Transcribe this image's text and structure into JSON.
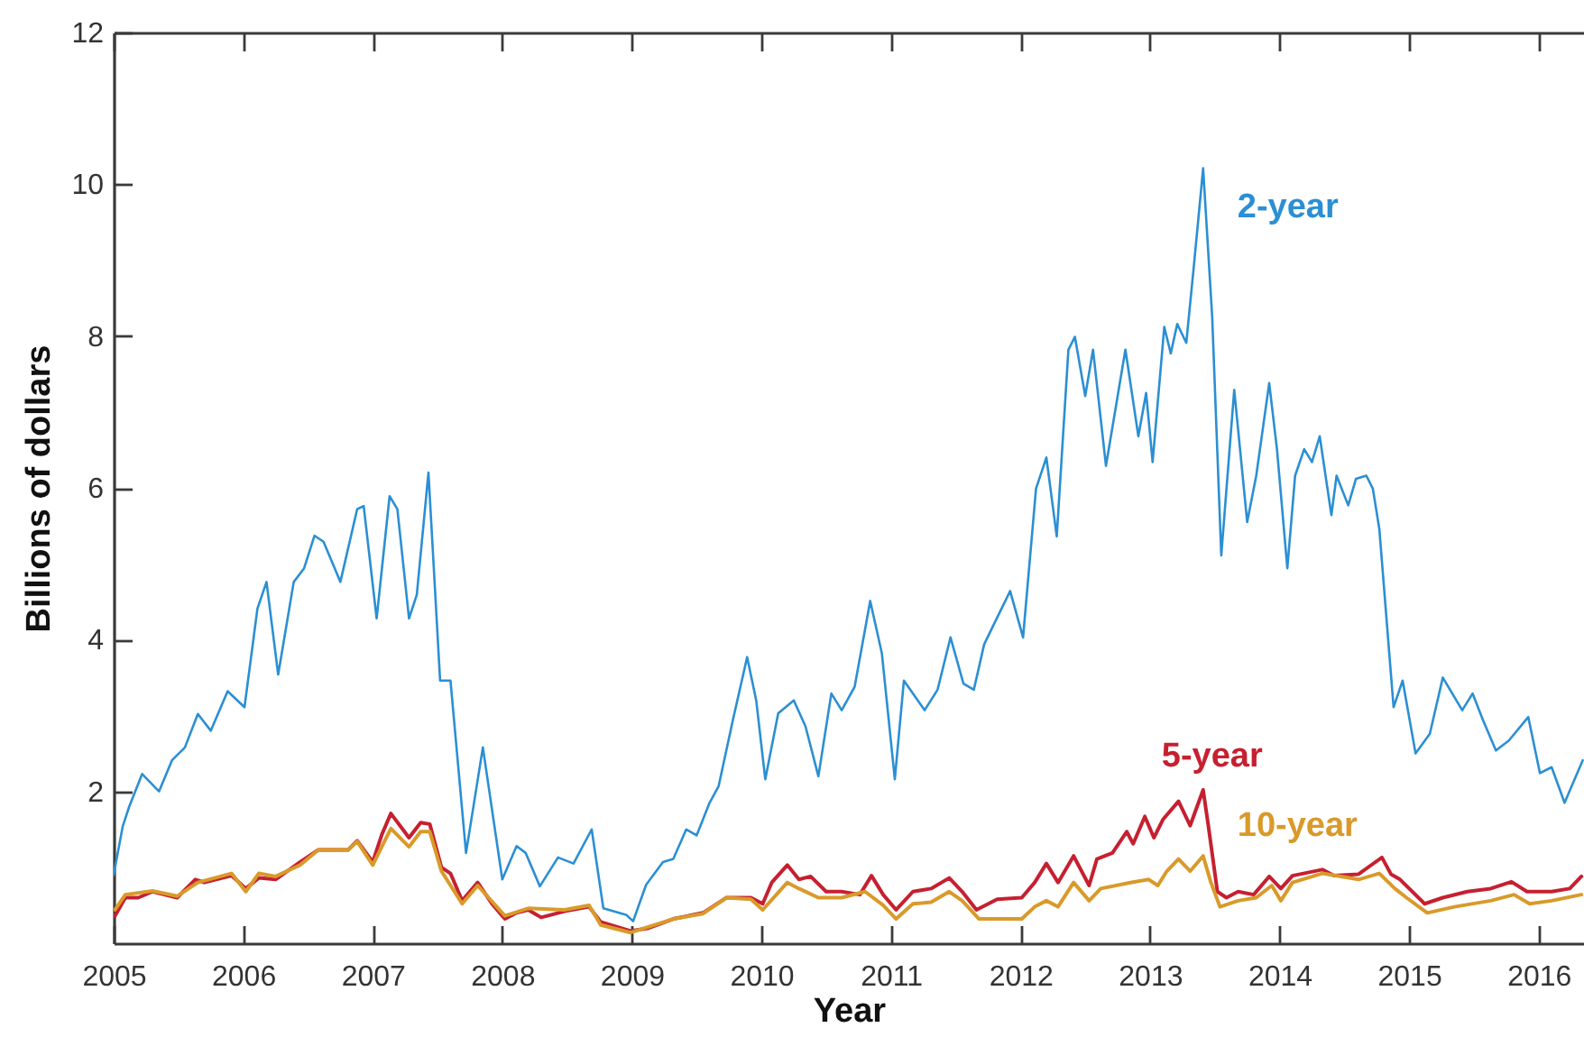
{
  "chart_data": {
    "type": "line",
    "xlabel": "Year",
    "ylabel": "Billions of dollars",
    "xlim": [
      2005,
      2016.35
    ],
    "xticks": [
      2005,
      2006,
      2007,
      2008,
      2009,
      2010,
      2011,
      2012,
      2013,
      2014,
      2015,
      2016
    ],
    "ylim": [
      0,
      12
    ],
    "yticks": [
      2,
      4,
      6,
      8,
      10,
      12
    ],
    "grid": false,
    "series": [
      {
        "name": "2-year",
        "color": "#2b8fd3",
        "x": [
          2005.0,
          2005.07,
          2005.12,
          2005.22,
          2005.35,
          2005.45,
          2005.55,
          2005.65,
          2005.75,
          2005.88,
          2006.01,
          2006.11,
          2006.18,
          2006.27,
          2006.39,
          2006.47,
          2006.55,
          2006.62,
          2006.75,
          2006.88,
          2006.93,
          2007.03,
          2007.13,
          2007.19,
          2007.28,
          2007.34,
          2007.43,
          2007.52,
          2007.6,
          2007.72,
          2007.85,
          2008.0,
          2008.11,
          2008.18,
          2008.29,
          2008.43,
          2008.55,
          2008.69,
          2008.78,
          2008.96,
          2009.01,
          2009.11,
          2009.24,
          2009.32,
          2009.42,
          2009.5,
          2009.6,
          2009.67,
          2009.78,
          2009.89,
          2009.96,
          2010.03,
          2010.13,
          2010.25,
          2010.34,
          2010.44,
          2010.54,
          2010.62,
          2010.72,
          2010.84,
          2010.93,
          2011.03,
          2011.1,
          2011.26,
          2011.36,
          2011.46,
          2011.56,
          2011.64,
          2011.72,
          2011.82,
          2011.92,
          2012.02,
          2012.12,
          2012.2,
          2012.28,
          2012.37,
          2012.42,
          2012.5,
          2012.56,
          2012.66,
          2012.81,
          2012.91,
          2012.97,
          2013.02,
          2013.11,
          2013.16,
          2013.21,
          2013.28,
          2013.34,
          2013.41,
          2013.48,
          2013.55,
          2013.65,
          2013.75,
          2013.82,
          2013.92,
          2013.98,
          2014.06,
          2014.12,
          2014.19,
          2014.25,
          2014.31,
          2014.4,
          2014.44,
          2014.53,
          2014.59,
          2014.67,
          2014.72,
          2014.77,
          2014.88,
          2014.95,
          2015.05,
          2015.16,
          2015.26,
          2015.41,
          2015.49,
          2015.57,
          2015.67,
          2015.77,
          2015.92,
          2016.01,
          2016.1,
          2016.2,
          2016.34
        ],
        "values": [
          0.9,
          1.54,
          1.8,
          2.23,
          2.0,
          2.41,
          2.58,
          3.02,
          2.8,
          3.32,
          3.11,
          4.41,
          4.76,
          3.54,
          4.76,
          4.94,
          5.37,
          5.29,
          4.76,
          5.72,
          5.76,
          4.28,
          5.89,
          5.72,
          4.28,
          4.59,
          6.2,
          3.46,
          3.46,
          1.19,
          2.58,
          0.84,
          1.28,
          1.19,
          0.75,
          1.13,
          1.05,
          1.5,
          0.46,
          0.37,
          0.29,
          0.77,
          1.07,
          1.11,
          1.5,
          1.42,
          1.85,
          2.07,
          2.94,
          3.77,
          3.2,
          2.16,
          3.03,
          3.2,
          2.86,
          2.2,
          3.29,
          3.07,
          3.38,
          4.51,
          3.82,
          2.16,
          3.46,
          3.07,
          3.34,
          4.03,
          3.42,
          3.34,
          3.94,
          4.29,
          4.64,
          4.03,
          5.99,
          6.4,
          5.36,
          7.82,
          7.99,
          7.21,
          7.82,
          6.29,
          7.82,
          6.68,
          7.25,
          6.34,
          8.12,
          7.77,
          8.16,
          7.91,
          8.95,
          10.21,
          8.25,
          5.11,
          7.29,
          5.55,
          6.16,
          7.38,
          6.51,
          4.94,
          6.16,
          6.51,
          6.34,
          6.68,
          5.64,
          6.16,
          5.77,
          6.12,
          6.16,
          5.99,
          5.46,
          3.11,
          3.46,
          2.5,
          2.76,
          3.5,
          3.07,
          3.29,
          2.94,
          2.54,
          2.67,
          2.98,
          2.24,
          2.32,
          1.85,
          2.41
        ]
      },
      {
        "name": "5-year",
        "color": "#c62030",
        "x": [
          2005.01,
          2005.09,
          2005.19,
          2005.3,
          2005.49,
          2005.63,
          2005.7,
          2005.91,
          2006.02,
          2006.12,
          2006.25,
          2006.44,
          2006.58,
          2006.81,
          2006.88,
          2007.0,
          2007.07,
          2007.14,
          2007.28,
          2007.37,
          2007.44,
          2007.53,
          2007.6,
          2007.69,
          2007.81,
          2007.92,
          2008.02,
          2008.11,
          2008.2,
          2008.3,
          2008.48,
          2008.67,
          2008.76,
          2008.99,
          2009.13,
          2009.32,
          2009.55,
          2009.73,
          2009.92,
          2010.01,
          2010.08,
          2010.2,
          2010.29,
          2010.38,
          2010.5,
          2010.62,
          2010.76,
          2010.85,
          2010.94,
          2011.04,
          2011.17,
          2011.31,
          2011.45,
          2011.55,
          2011.66,
          2011.82,
          2012.01,
          2012.11,
          2012.2,
          2012.29,
          2012.41,
          2012.53,
          2012.59,
          2012.71,
          2012.82,
          2012.87,
          2012.96,
          2013.03,
          2013.1,
          2013.22,
          2013.31,
          2013.41,
          2013.45,
          2013.52,
          2013.59,
          2013.68,
          2013.8,
          2013.92,
          2014.01,
          2014.1,
          2014.33,
          2014.42,
          2014.61,
          2014.79,
          2014.86,
          2014.93,
          2015.12,
          2015.26,
          2015.45,
          2015.63,
          2015.79,
          2015.91,
          2016.1,
          2016.24,
          2016.33
        ],
        "values": [
          0.36,
          0.6,
          0.6,
          0.68,
          0.6,
          0.84,
          0.8,
          0.89,
          0.72,
          0.86,
          0.84,
          1.07,
          1.23,
          1.23,
          1.35,
          1.07,
          1.43,
          1.71,
          1.39,
          1.59,
          1.57,
          1.0,
          0.92,
          0.56,
          0.8,
          0.52,
          0.32,
          0.4,
          0.44,
          0.34,
          0.42,
          0.48,
          0.28,
          0.16,
          0.2,
          0.32,
          0.4,
          0.6,
          0.6,
          0.52,
          0.8,
          1.03,
          0.84,
          0.88,
          0.68,
          0.68,
          0.64,
          0.89,
          0.64,
          0.44,
          0.68,
          0.72,
          0.86,
          0.68,
          0.44,
          0.58,
          0.6,
          0.8,
          1.05,
          0.8,
          1.15,
          0.76,
          1.11,
          1.19,
          1.47,
          1.31,
          1.67,
          1.39,
          1.63,
          1.87,
          1.55,
          2.02,
          1.55,
          0.68,
          0.6,
          0.68,
          0.64,
          0.88,
          0.72,
          0.89,
          0.97,
          0.89,
          0.91,
          1.13,
          0.91,
          0.84,
          0.52,
          0.6,
          0.68,
          0.72,
          0.81,
          0.68,
          0.68,
          0.72,
          0.88
        ]
      },
      {
        "name": "10-year",
        "color": "#d99a2a",
        "x": [
          2005.01,
          2005.09,
          2005.3,
          2005.49,
          2005.65,
          2005.91,
          2006.02,
          2006.12,
          2006.25,
          2006.44,
          2006.58,
          2006.81,
          2006.88,
          2007.0,
          2007.09,
          2007.14,
          2007.28,
          2007.37,
          2007.44,
          2007.53,
          2007.69,
          2007.81,
          2008.02,
          2008.2,
          2008.48,
          2008.67,
          2008.76,
          2008.99,
          2009.32,
          2009.55,
          2009.73,
          2009.92,
          2010.01,
          2010.2,
          2010.29,
          2010.44,
          2010.62,
          2010.8,
          2010.94,
          2011.04,
          2011.17,
          2011.31,
          2011.45,
          2011.55,
          2011.68,
          2011.82,
          2012.01,
          2012.11,
          2012.2,
          2012.29,
          2012.41,
          2012.53,
          2012.62,
          2012.85,
          2012.99,
          2013.06,
          2013.13,
          2013.22,
          2013.31,
          2013.41,
          2013.47,
          2013.54,
          2013.68,
          2013.82,
          2013.94,
          2014.01,
          2014.1,
          2014.33,
          2014.61,
          2014.77,
          2014.89,
          2014.98,
          2015.14,
          2015.35,
          2015.63,
          2015.81,
          2015.93,
          2016.1,
          2016.33
        ],
        "values": [
          0.44,
          0.64,
          0.69,
          0.62,
          0.8,
          0.92,
          0.68,
          0.92,
          0.88,
          1.03,
          1.23,
          1.23,
          1.34,
          1.03,
          1.34,
          1.51,
          1.27,
          1.47,
          1.47,
          0.95,
          0.52,
          0.76,
          0.36,
          0.46,
          0.44,
          0.5,
          0.24,
          0.14,
          0.32,
          0.39,
          0.6,
          0.58,
          0.44,
          0.8,
          0.72,
          0.6,
          0.6,
          0.68,
          0.5,
          0.32,
          0.52,
          0.54,
          0.68,
          0.56,
          0.32,
          0.32,
          0.32,
          0.48,
          0.56,
          0.48,
          0.8,
          0.56,
          0.72,
          0.8,
          0.84,
          0.76,
          0.95,
          1.11,
          0.95,
          1.15,
          0.8,
          0.48,
          0.56,
          0.6,
          0.76,
          0.56,
          0.8,
          0.92,
          0.84,
          0.92,
          0.72,
          0.6,
          0.4,
          0.48,
          0.56,
          0.64,
          0.52,
          0.56,
          0.64
        ]
      }
    ]
  }
}
